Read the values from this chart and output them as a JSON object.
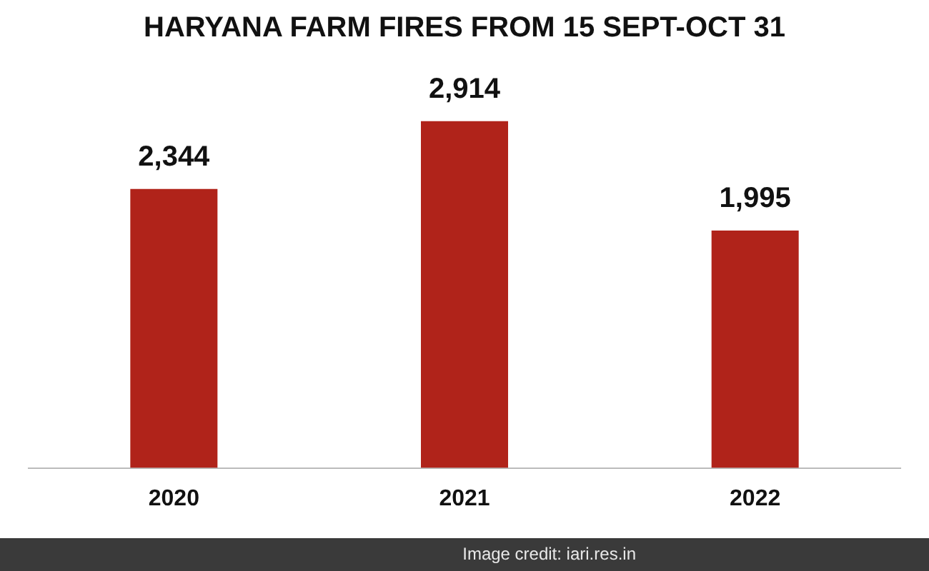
{
  "chart_data": {
    "type": "bar",
    "title": "HARYANA FARM FIRES FROM 15 SEPT-OCT 31",
    "categories": [
      "2020",
      "2021",
      "2022"
    ],
    "values": [
      2344,
      2914,
      1995
    ],
    "value_labels": [
      "2,344",
      "2,914",
      "1,995"
    ],
    "color": "#b0231a",
    "grid": false,
    "legend": false,
    "tick_labels": "x",
    "annotations": [
      "Image credit: iari.res.in"
    ]
  }
}
